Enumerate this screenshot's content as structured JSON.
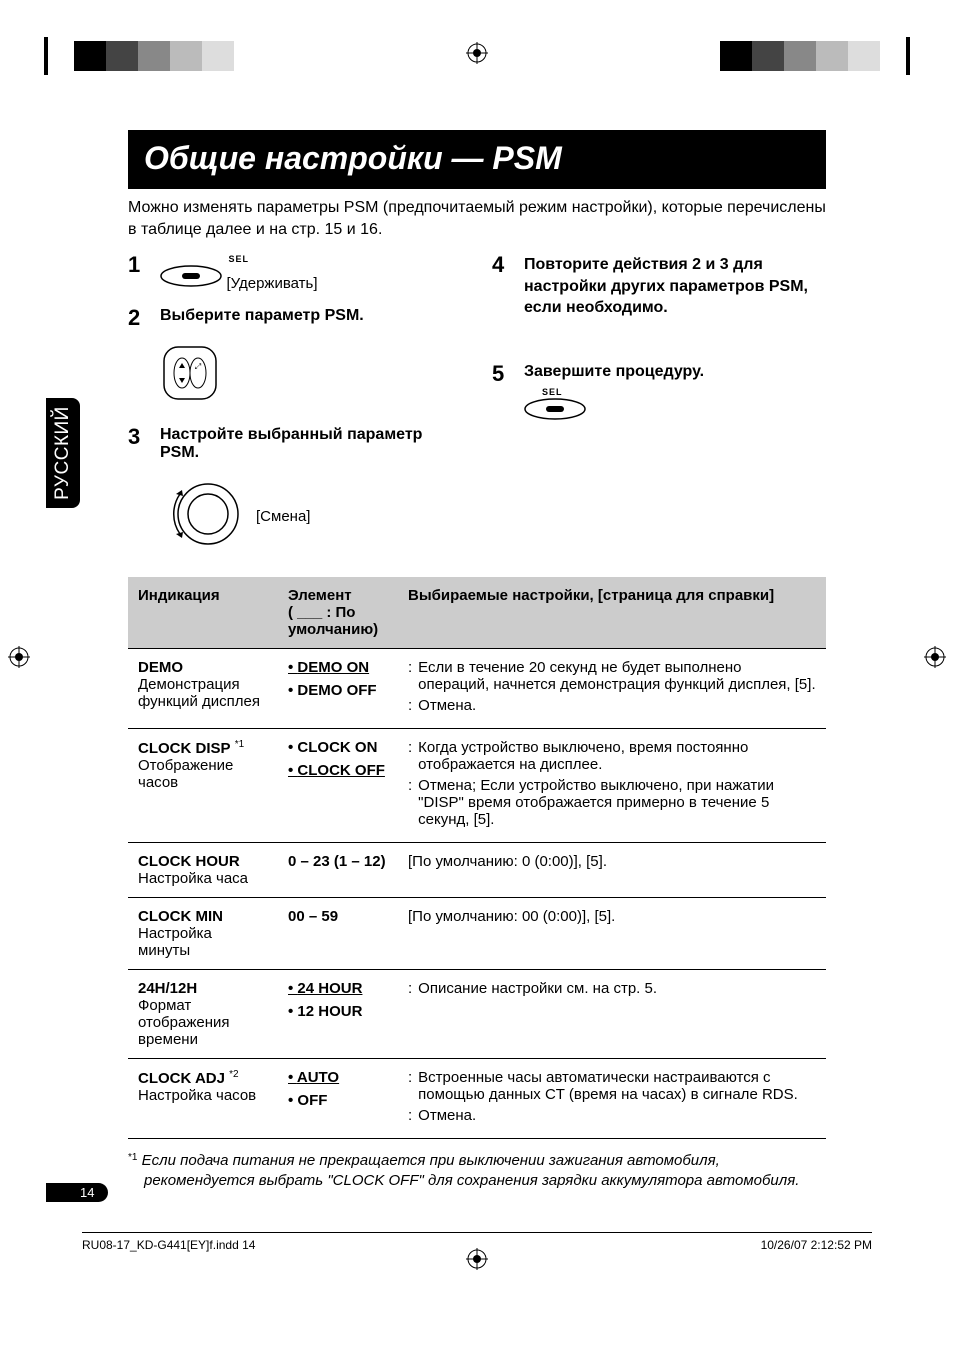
{
  "sidebar_lang": "РУССКИЙ",
  "title": "Общие настройки — PSM",
  "intro": "Можно изменять параметры PSM (предпочитаемый режим настройки), которые перечислены в таблице далее и на стр. 15 и 16.",
  "steps": {
    "s1": {
      "num": "1",
      "note": "[Удерживать]",
      "sel_label": "SEL"
    },
    "s2": {
      "num": "2",
      "text": "Выберите параметр PSM."
    },
    "s3": {
      "num": "3",
      "text": "Настройте выбранный параметр PSM.",
      "note": "[Смена]"
    },
    "s4": {
      "num": "4",
      "text": "Повторите действия 2 и 3 для настройки других параметров PSM, если необходимо."
    },
    "s5": {
      "num": "5",
      "text": "Завершите процедуру.",
      "sel_label": "SEL"
    }
  },
  "table": {
    "head": {
      "c1": "Индикация",
      "c2": "Элемент",
      "c2_sub": "( ___ : По умолчанию)",
      "c3": "Выбираемые настройки, [страница для справки]"
    },
    "rows": [
      {
        "ind_head": "DEMO",
        "ind_sub": "Демонстрация функций дисплея",
        "elems": [
          {
            "label": "DEMO ON",
            "default": true
          },
          {
            "label": "DEMO OFF",
            "default": false
          }
        ],
        "descs": [
          "Если в течение 20 секунд не будет выполнено операций, начнется демонстрация функций дисплея, [5].",
          "Отмена."
        ]
      },
      {
        "ind_head": "CLOCK DISP",
        "ind_sup": "*1",
        "ind_sub": "Отображение часов",
        "elems": [
          {
            "label": "CLOCK ON",
            "default": false
          },
          {
            "label": "CLOCK OFF",
            "default": true
          }
        ],
        "descs": [
          "Когда устройство выключено, время постоянно отображается на дисплее.",
          "Отмена; Если устройство выключено, при нажатии \"DISP\" время отображается примерно в течение 5 секунд, [5]."
        ]
      },
      {
        "ind_head": "CLOCK HOUR",
        "ind_sub": "Настройка часа",
        "elem_plain": "0 – 23 (1 – 12)",
        "desc_plain": "[По умолчанию: 0 (0:00)], [5]."
      },
      {
        "ind_head": "CLOCK MIN",
        "ind_sub": "Настройка минуты",
        "elem_plain": "00 – 59",
        "desc_plain": "[По умолчанию: 00 (0:00)], [5]."
      },
      {
        "ind_head": "24H/12H",
        "ind_sub": "Формат отображения времени",
        "elems": [
          {
            "label": "24 HOUR",
            "default": true
          },
          {
            "label": "12 HOUR",
            "default": false
          }
        ],
        "descs": [
          "Описание настройки см. на стр. 5."
        ]
      },
      {
        "ind_head": "CLOCK ADJ",
        "ind_sup": "*2",
        "ind_sub": "Настройка часов",
        "elems": [
          {
            "label": "AUTO",
            "default": true
          },
          {
            "label": "OFF",
            "default": false
          }
        ],
        "descs": [
          "Встроенные часы автоматически настраиваются с помощью данных CT (время на часах) в сигнале RDS.",
          "Отмена."
        ]
      }
    ]
  },
  "footnote": {
    "sup": "*1",
    "text": "Если подача питания не прекращается при выключении зажигания автомобиля, рекомендуется выбрать \"CLOCK OFF\" для сохранения зарядки аккумулятора автомобиля."
  },
  "page_number": "14",
  "footer": {
    "left": "RU08-17_KD-G441[EY]f.indd   14",
    "right": "10/26/07   2:12:52 PM"
  },
  "colors": {
    "title_bg": "#000000",
    "head_row_bg": "#cccccc"
  },
  "fonts": {
    "title_pt": 32,
    "body_pt": 16,
    "table_pt": 15
  }
}
